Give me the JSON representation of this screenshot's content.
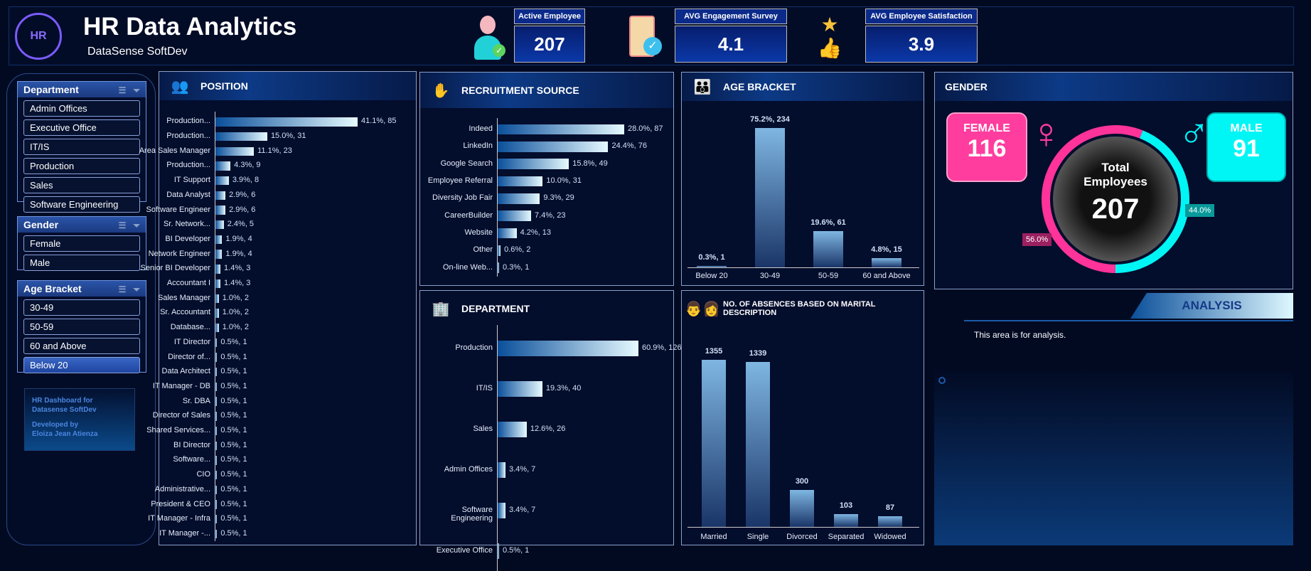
{
  "header": {
    "title": "HR Data Analytics",
    "subtitle": "DataSense SoftDev",
    "kpis": [
      {
        "label": "Active Employee",
        "value": "207",
        "icon": "employee-check-icon"
      },
      {
        "label": "AVG Engagement Survey",
        "value": "4.1",
        "icon": "clipboard-check-icon"
      },
      {
        "label": "AVG Employee Satisfaction",
        "value": "3.9",
        "icon": "thumbs-up-stars-icon"
      }
    ]
  },
  "slicers": {
    "department": {
      "title": "Department",
      "items": [
        "Admin Offices",
        "Executive Office",
        "IT/IS",
        "Production",
        "Sales",
        "Software Engineering"
      ]
    },
    "gender": {
      "title": "Gender",
      "items": [
        "Female",
        "Male"
      ]
    },
    "age": {
      "title": "Age Bracket",
      "items": [
        "30-49",
        "50-59",
        "60 and Above",
        "Below 20"
      ],
      "selected": "Below 20"
    }
  },
  "credits": {
    "line1": "HR Dashboard for",
    "line2": "Datasense SoftDev",
    "line3": "Developed by",
    "line4": "Eloiza Jean Atienza"
  },
  "chart_data": [
    {
      "id": "position",
      "type": "bar",
      "title": "POSITION",
      "categories": [
        "Production...",
        "Production...",
        "Area Sales Manager",
        "Production...",
        "IT Support",
        "Data Analyst",
        "Software Engineer",
        "Sr. Network...",
        "BI Developer",
        "Network Engineer",
        "Senior BI Developer",
        "Accountant I",
        "Sales Manager",
        "Sr. Accountant",
        "Database...",
        "IT Director",
        "Director of...",
        "Data Architect",
        "IT Manager - DB",
        "Sr. DBA",
        "Director of Sales",
        "Shared Services...",
        "BI Director",
        "Software...",
        "CIO",
        "Administrative...",
        "President & CEO",
        "IT Manager - Infra",
        "IT Manager -..."
      ],
      "values": [
        85,
        31,
        23,
        9,
        8,
        6,
        6,
        5,
        4,
        4,
        3,
        3,
        2,
        2,
        2,
        1,
        1,
        1,
        1,
        1,
        1,
        1,
        1,
        1,
        1,
        1,
        1,
        1,
        1
      ],
      "labels": [
        "41.1%, 85",
        "15.0%, 31",
        "11.1%, 23",
        "4.3%, 9",
        "3.9%, 8",
        "2.9%, 6",
        "2.9%, 6",
        "2.4%, 5",
        "1.9%, 4",
        "1.9%, 4",
        "1.4%, 3",
        "1.4%, 3",
        "1.0%, 2",
        "1.0%, 2",
        "1.0%, 2",
        "0.5%, 1",
        "0.5%, 1",
        "0.5%, 1",
        "0.5%, 1",
        "0.5%, 1",
        "0.5%, 1",
        "0.5%, 1",
        "0.5%, 1",
        "0.5%, 1",
        "0.5%, 1",
        "0.5%, 1",
        "0.5%, 1",
        "0.5%, 1",
        "0.5%, 1"
      ]
    },
    {
      "id": "recruit",
      "type": "bar",
      "title": "RECRUITMENT SOURCE",
      "categories": [
        "Indeed",
        "LinkedIn",
        "Google Search",
        "Employee Referral",
        "Diversity Job Fair",
        "CareerBuilder",
        "Website",
        "Other",
        "On-line Web..."
      ],
      "values": [
        87,
        76,
        49,
        31,
        29,
        23,
        13,
        2,
        1
      ],
      "labels": [
        "28.0%, 87",
        "24.4%, 76",
        "15.8%, 49",
        "10.0%, 31",
        "9.3%, 29",
        "7.4%, 23",
        "4.2%, 13",
        "0.6%, 2",
        "0.3%, 1"
      ]
    },
    {
      "id": "dept",
      "type": "bar",
      "title": "DEPARTMENT",
      "categories": [
        "Production",
        "IT/IS",
        "Sales",
        "Admin Offices",
        "Software Engineering",
        "Executive Office"
      ],
      "values": [
        126,
        40,
        26,
        7,
        7,
        1
      ],
      "labels": [
        "60.9%, 126",
        "19.3%, 40",
        "12.6%, 26",
        "3.4%, 7",
        "3.4%, 7",
        "0.5%, 1"
      ]
    },
    {
      "id": "age",
      "type": "bar",
      "title": "AGE BRACKET",
      "categories": [
        "Below 20",
        "30-49",
        "50-59",
        "60 and Above"
      ],
      "values": [
        1,
        234,
        61,
        15
      ],
      "labels": [
        "0.3%, 1",
        "75.2%, 234",
        "19.6%, 61",
        "4.8%, 15"
      ]
    },
    {
      "id": "absence",
      "type": "bar",
      "title": "NO. OF ABSENCES BASED ON MARITAL DESCRIPTION",
      "categories": [
        "Married",
        "Single",
        "Divorced",
        "Separated",
        "Widowed"
      ],
      "values": [
        1355,
        1339,
        300,
        103,
        87
      ],
      "labels": [
        "1355",
        "1339",
        "300",
        "103",
        "87"
      ]
    },
    {
      "id": "gender",
      "type": "pie",
      "title": "GENDER",
      "categories": [
        "Female",
        "Male"
      ],
      "values": [
        116,
        91
      ],
      "labels": [
        "56.0%",
        "44.0%"
      ],
      "colors": [
        "#ff3399",
        "#00f5f5"
      ]
    }
  ],
  "gender": {
    "female_label": "FEMALE",
    "female_value": "116",
    "male_label": "MALE",
    "male_value": "91",
    "center_line1": "Total",
    "center_line2": "Employees",
    "total": "207"
  },
  "analysis": {
    "title": "ANALYSIS",
    "text": "This area is for analysis."
  }
}
